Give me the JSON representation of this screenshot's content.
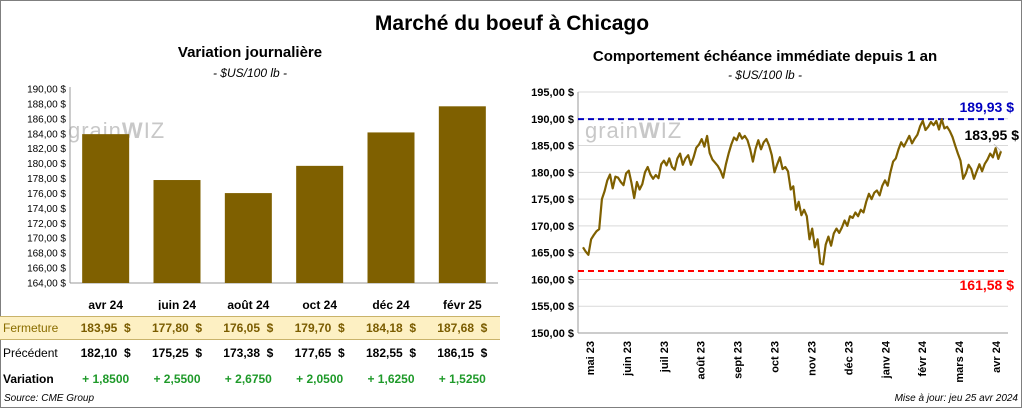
{
  "title": "Marché du boeuf à Chicago",
  "footer": {
    "source": "Source: CME Group",
    "updated": "Mise à jour: jeu 25 avr 2024"
  },
  "watermark": "grainwiz",
  "colors": {
    "bar": "#7f6000",
    "line": "#7f6000",
    "max_line": "#0000c0",
    "min_line": "#ff0000",
    "table_highlight": "#fdf0c3"
  },
  "chart_data": [
    {
      "type": "bar",
      "title": "Variation journalière",
      "subtitle": "- $US/100 lb -",
      "categories": [
        "avr 24",
        "juin 24",
        "août 24",
        "oct 24",
        "déc 24",
        "févr 25"
      ],
      "values": [
        183.95,
        177.8,
        176.05,
        179.7,
        184.18,
        187.68
      ],
      "ylim": [
        164,
        190
      ],
      "yticks": [
        "190,00 $",
        "188,00 $",
        "186,00 $",
        "184,00 $",
        "182,00 $",
        "180,00 $",
        "178,00 $",
        "176,00 $",
        "174,00 $",
        "172,00 $",
        "170,00 $",
        "168,00 $",
        "166,00 $",
        "164,00 $"
      ],
      "grid": false,
      "table": {
        "rows": [
          {
            "label": "Fermeture",
            "cells": [
              "183,95  $",
              "177,80  $",
              "176,05  $",
              "179,70  $",
              "184,18  $",
              "187,68  $"
            ]
          },
          {
            "label": "Précédent",
            "cells": [
              "182,10  $",
              "175,25  $",
              "173,38  $",
              "177,65  $",
              "182,55  $",
              "186,15  $"
            ]
          },
          {
            "label": "Variation",
            "cells": [
              "+ 1,8500",
              "+ 2,5500",
              "+ 2,6750",
              "+ 2,0500",
              "+ 1,6250",
              "+ 1,5250"
            ]
          }
        ]
      }
    },
    {
      "type": "line",
      "title": "Comportement  échéance immédiate depuis 1 an",
      "subtitle": "- $US/100 lb -",
      "ylim": [
        150,
        195
      ],
      "yticks": [
        "195,00 $",
        "190,00 $",
        "185,00 $",
        "180,00 $",
        "175,00 $",
        "170,00 $",
        "165,00 $",
        "160,00 $",
        "155,00 $",
        "150,00 $"
      ],
      "xticks": [
        "mai 23",
        "juin 23",
        "juil 23",
        "août 23",
        "sept 23",
        "oct 23",
        "nov 23",
        "déc 23",
        "janv 24",
        "févr 24",
        "mars 24",
        "avr 24"
      ],
      "grid": true,
      "max": {
        "value": 189.93,
        "label": "189,93 $"
      },
      "min": {
        "value": 161.58,
        "label": "161,58 $"
      },
      "last": {
        "label": "183,95 $"
      },
      "series": [
        {
          "values": [
            [
              0,
              166.0
            ],
            [
              1,
              165.2
            ],
            [
              2,
              164.6
            ],
            [
              3,
              167.5
            ],
            [
              4,
              168.3
            ],
            [
              5,
              169.0
            ],
            [
              6,
              169.4
            ],
            [
              7,
              175.0
            ],
            [
              8,
              176.5
            ],
            [
              9,
              178.5
            ],
            [
              10,
              179.6
            ],
            [
              11,
              177.0
            ],
            [
              12,
              179.2
            ],
            [
              13,
              179.0
            ],
            [
              14,
              178.2
            ],
            [
              15,
              177.6
            ],
            [
              16,
              179.8
            ],
            [
              17,
              180.3
            ],
            [
              18,
              178.0
            ],
            [
              19,
              175.2
            ],
            [
              20,
              178.2
            ],
            [
              21,
              176.8
            ],
            [
              22,
              177.8
            ],
            [
              23,
              180.0
            ],
            [
              24,
              181.0
            ],
            [
              25,
              179.6
            ],
            [
              26,
              178.8
            ],
            [
              27,
              179.5
            ],
            [
              28,
              178.9
            ],
            [
              29,
              181.5
            ],
            [
              30,
              182.2
            ],
            [
              31,
              181.3
            ],
            [
              32,
              182.6
            ],
            [
              33,
              181.0
            ],
            [
              34,
              180.5
            ],
            [
              35,
              182.6
            ],
            [
              36,
              183.5
            ],
            [
              37,
              181.4
            ],
            [
              38,
              182.6
            ],
            [
              39,
              183.2
            ],
            [
              40,
              181.4
            ],
            [
              41,
              182.8
            ],
            [
              42,
              184.6
            ],
            [
              43,
              185.2
            ],
            [
              44,
              186.2
            ],
            [
              45,
              184.8
            ],
            [
              46,
              186.8
            ],
            [
              47,
              183.6
            ],
            [
              48,
              182.4
            ],
            [
              49,
              181.8
            ],
            [
              50,
              181.2
            ],
            [
              51,
              180.3
            ],
            [
              52,
              179.0
            ],
            [
              53,
              181.5
            ],
            [
              54,
              183.5
            ],
            [
              55,
              185.2
            ],
            [
              56,
              186.5
            ],
            [
              57,
              186.0
            ],
            [
              58,
              187.3
            ],
            [
              59,
              186.3
            ],
            [
              60,
              186.8
            ],
            [
              61,
              186.0
            ],
            [
              62,
              184.3
            ],
            [
              63,
              182.0
            ],
            [
              64,
              184.4
            ],
            [
              65,
              186.0
            ],
            [
              66,
              184.3
            ],
            [
              67,
              185.6
            ],
            [
              68,
              186.2
            ],
            [
              69,
              185.0
            ],
            [
              70,
              183.2
            ],
            [
              71,
              180.0
            ],
            [
              72,
              181.5
            ],
            [
              73,
              182.8
            ],
            [
              74,
              180.6
            ],
            [
              75,
              181.0
            ],
            [
              76,
              180.2
            ],
            [
              77,
              176.8
            ],
            [
              78,
              177.4
            ],
            [
              79,
              173.0
            ],
            [
              80,
              174.5
            ],
            [
              81,
              172.0
            ],
            [
              82,
              173.0
            ],
            [
              83,
              171.8
            ],
            [
              84,
              167.5
            ],
            [
              85,
              169.5
            ],
            [
              86,
              166.0
            ],
            [
              87,
              167.5
            ],
            [
              88,
              163.0
            ],
            [
              89,
              162.8
            ],
            [
              90,
              166.5
            ],
            [
              91,
              168.0
            ],
            [
              92,
              166.3
            ],
            [
              93,
              168.6
            ],
            [
              94,
              169.5
            ],
            [
              95,
              168.7
            ],
            [
              96,
              169.7
            ],
            [
              97,
              171.0
            ],
            [
              98,
              170.0
            ],
            [
              99,
              171.8
            ],
            [
              100,
              171.5
            ],
            [
              101,
              172.5
            ],
            [
              102,
              171.8
            ],
            [
              103,
              173.0
            ],
            [
              104,
              172.5
            ],
            [
              105,
              174.5
            ],
            [
              106,
              176.0
            ],
            [
              107,
              175.0
            ],
            [
              108,
              176.2
            ],
            [
              109,
              176.6
            ],
            [
              110,
              175.7
            ],
            [
              111,
              177.5
            ],
            [
              112,
              178.5
            ],
            [
              113,
              177.5
            ],
            [
              114,
              180.0
            ],
            [
              115,
              182.0
            ],
            [
              116,
              182.6
            ],
            [
              117,
              184.3
            ],
            [
              118,
              185.6
            ],
            [
              119,
              184.8
            ],
            [
              120,
              185.8
            ],
            [
              121,
              186.8
            ],
            [
              122,
              185.4
            ],
            [
              123,
              186.3
            ],
            [
              124,
              187.0
            ],
            [
              125,
              188.6
            ],
            [
              126,
              189.6
            ],
            [
              127,
              187.9
            ],
            [
              128,
              188.5
            ],
            [
              129,
              189.4
            ],
            [
              130,
              188.8
            ],
            [
              131,
              189.6
            ],
            [
              132,
              188.0
            ],
            [
              133,
              189.9
            ],
            [
              134,
              188.2
            ],
            [
              135,
              188.5
            ],
            [
              136,
              187.7
            ],
            [
              137,
              186.6
            ],
            [
              138,
              185.0
            ],
            [
              139,
              183.5
            ],
            [
              140,
              182.2
            ],
            [
              141,
              178.8
            ],
            [
              142,
              179.8
            ],
            [
              143,
              181.4
            ],
            [
              144,
              180.6
            ],
            [
              145,
              178.8
            ],
            [
              146,
              180.2
            ],
            [
              147,
              181.5
            ],
            [
              148,
              180.2
            ],
            [
              149,
              181.6
            ],
            [
              150,
              182.4
            ],
            [
              151,
              183.5
            ],
            [
              152,
              182.8
            ],
            [
              153,
              184.5
            ],
            [
              154,
              182.5
            ],
            [
              155,
              183.95
            ]
          ]
        }
      ]
    }
  ]
}
